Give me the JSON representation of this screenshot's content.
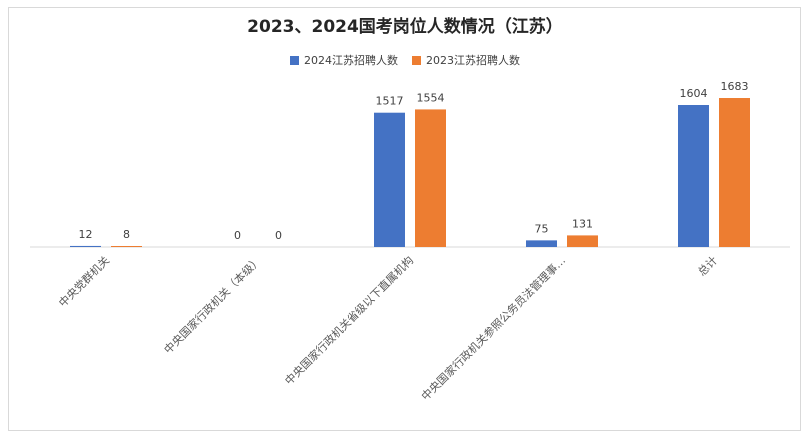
{
  "chart_data": {
    "type": "bar",
    "title": "2023、2024国考岗位人数情况（江苏）",
    "categories": [
      "中央党群机关",
      "中央国家行政机关（本级）",
      "中央国家行政机关省级以下直属机构",
      "中央国家行政机关参照公务员法管理事…",
      "总计"
    ],
    "series": [
      {
        "name": "2024江苏招聘人数",
        "color": "#4472c4",
        "values": [
          12,
          0,
          1517,
          75,
          1604
        ]
      },
      {
        "name": "2023江苏招聘人数",
        "color": "#ed7d31",
        "values": [
          8,
          0,
          1554,
          131,
          1683
        ]
      }
    ],
    "data_labels": true,
    "legend": "top",
    "grid": false,
    "ylim": [
      0,
      1900
    ]
  }
}
